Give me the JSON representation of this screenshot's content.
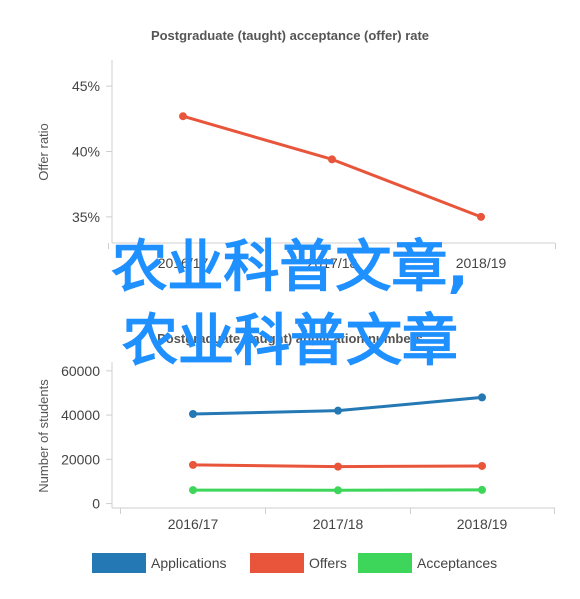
{
  "chart_data": [
    {
      "type": "line",
      "title": "Postgraduate (taught) acceptance (offer) rate",
      "ylabel": "Offer ratio",
      "categories": [
        "2016/17",
        "2017/18",
        "2018/19"
      ],
      "y_ticks": [
        "35%",
        "40%",
        "45%"
      ],
      "ylim": [
        0.33,
        0.47
      ],
      "grid": false,
      "series": [
        {
          "values": [
            0.427,
            0.394,
            0.35
          ],
          "color": "#e8553b"
        }
      ]
    },
    {
      "type": "line",
      "title": "Postgraduate (taught) application numbers",
      "ylabel": "Number of students",
      "categories": [
        "2016/17",
        "2017/18",
        "2018/19"
      ],
      "y_ticks": [
        "0",
        "20000",
        "40000",
        "60000"
      ],
      "ylim": [
        -2000,
        64000
      ],
      "grid": false,
      "legend_position": "bottom",
      "series": [
        {
          "name": "Applications",
          "values": [
            40500,
            42000,
            48000
          ],
          "color": "#2478b4"
        },
        {
          "name": "Offers",
          "values": [
            17500,
            16700,
            17000
          ],
          "color": "#e8553b"
        },
        {
          "name": "Acceptances",
          "values": [
            6100,
            6000,
            6200
          ],
          "color": "#3dd65a"
        }
      ]
    }
  ],
  "overlay": {
    "line1": "农业科普文章,",
    "line2": "农业科普文章",
    "color": "#1e90ff"
  }
}
